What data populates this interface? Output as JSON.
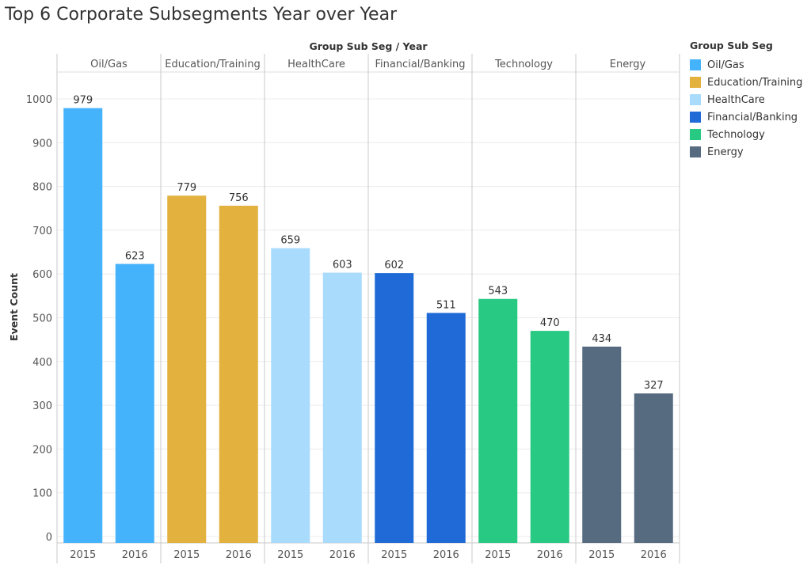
{
  "title": "Top 6 Corporate Subsegments Year over Year",
  "legend": {
    "title": "Group Sub Seg",
    "placement": "right",
    "items": [
      {
        "label": "Oil/Gas",
        "color": "#45b3fb"
      },
      {
        "label": "Education/Training",
        "color": "#e2b13e"
      },
      {
        "label": "HealthCare",
        "color": "#a9dbfd"
      },
      {
        "label": "Financial/Banking",
        "color": "#1f6ad6"
      },
      {
        "label": "Technology",
        "color": "#28c982"
      },
      {
        "label": "Energy",
        "color": "#576b80"
      }
    ]
  },
  "chart_data": {
    "type": "bar",
    "title": "Top 6 Corporate Subsegments Year over Year",
    "header_label": "Group Sub Seg  /  Year",
    "ylabel": "Event Count",
    "xlabel": "",
    "ylim": [
      0,
      1060
    ],
    "yticks": [
      0,
      100,
      200,
      300,
      400,
      500,
      600,
      700,
      800,
      900,
      1000
    ],
    "grid": true,
    "groups": [
      {
        "name": "Oil/Gas",
        "color": "#45b3fb",
        "years": [
          "2015",
          "2016"
        ],
        "values": [
          979,
          623
        ]
      },
      {
        "name": "Education/Training",
        "color": "#e2b13e",
        "years": [
          "2015",
          "2016"
        ],
        "values": [
          779,
          756
        ]
      },
      {
        "name": "HealthCare",
        "color": "#a9dbfd",
        "years": [
          "2015",
          "2016"
        ],
        "values": [
          659,
          603
        ]
      },
      {
        "name": "Financial/Banking",
        "color": "#1f6ad6",
        "years": [
          "2015",
          "2016"
        ],
        "values": [
          602,
          511
        ]
      },
      {
        "name": "Technology",
        "color": "#28c982",
        "years": [
          "2015",
          "2016"
        ],
        "values": [
          543,
          470
        ]
      },
      {
        "name": "Energy",
        "color": "#576b80",
        "years": [
          "2015",
          "2016"
        ],
        "values": [
          434,
          327
        ]
      }
    ]
  }
}
